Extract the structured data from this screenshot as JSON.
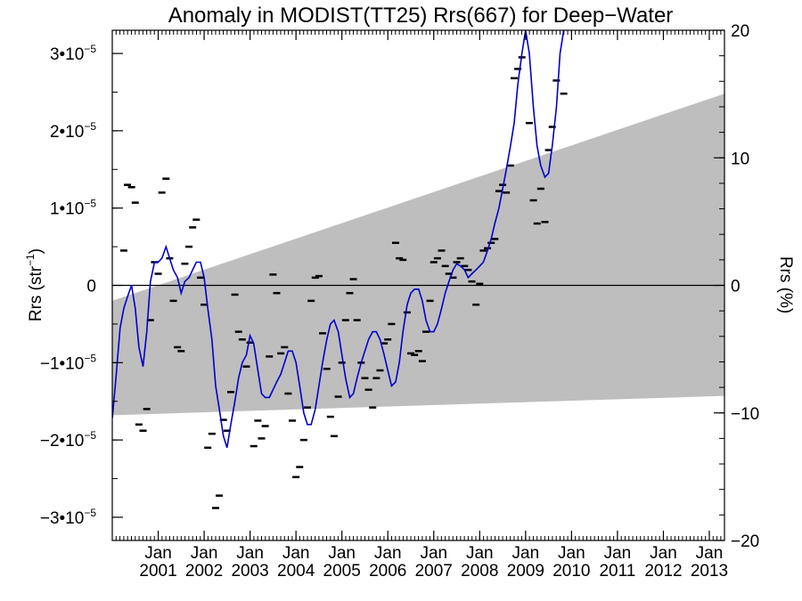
{
  "chart_data": {
    "type": "line",
    "title": "Anomaly in MODIST(TT25) Rrs(667) for Deep−Water",
    "ylabel_left": "Rrs (str",
    "ylabel_left_sup": "−1",
    "ylabel_left_close": ")",
    "ylabel_right": "Rrs (%)",
    "xlim": [
      2000.0,
      2013.33
    ],
    "ylim": [
      -3.3e-05,
      3.3e-05
    ],
    "ylim_right": [
      -20,
      20
    ],
    "x_month_label": "Jan",
    "x_ticks": [
      {
        "x": 2001.0,
        "year": "2001"
      },
      {
        "x": 2002.0,
        "year": "2002"
      },
      {
        "x": 2003.0,
        "year": "2003"
      },
      {
        "x": 2004.0,
        "year": "2004"
      },
      {
        "x": 2005.0,
        "year": "2005"
      },
      {
        "x": 2006.0,
        "year": "2006"
      },
      {
        "x": 2007.0,
        "year": "2007"
      },
      {
        "x": 2008.0,
        "year": "2008"
      },
      {
        "x": 2009.0,
        "year": "2009"
      },
      {
        "x": 2010.0,
        "year": "2010"
      },
      {
        "x": 2011.0,
        "year": "2011"
      },
      {
        "x": 2012.0,
        "year": "2012"
      },
      {
        "x": 2013.0,
        "year": "2013"
      }
    ],
    "y_ticks_left": [
      {
        "v": 3e-05,
        "mant": "3•10",
        "exp": "−5"
      },
      {
        "v": 2e-05,
        "mant": "2•10",
        "exp": "−5"
      },
      {
        "v": 1e-05,
        "mant": "1•10",
        "exp": "−5"
      },
      {
        "v": 0,
        "mant": "0",
        "exp": ""
      },
      {
        "v": -1e-05,
        "mant": "−1•10",
        "exp": "−5"
      },
      {
        "v": -2e-05,
        "mant": "−2•10",
        "exp": "−5"
      },
      {
        "v": -3e-05,
        "mant": "−3•10",
        "exp": "−5"
      }
    ],
    "y_ticks_right": [
      {
        "v": 20,
        "label": "20"
      },
      {
        "v": 10,
        "label": "10"
      },
      {
        "v": 0,
        "label": "0"
      },
      {
        "v": -10,
        "label": "−10"
      },
      {
        "v": -20,
        "label": "−20"
      }
    ],
    "zero_line": true,
    "band": {
      "color": "#bebebe",
      "x": [
        2000.0,
        2013.33
      ],
      "upper": [
        -2e-06,
        2.48e-05
      ],
      "lower": [
        -1.68e-05,
        -1.43e-05
      ]
    },
    "series": [
      {
        "kind": "smoothed-line",
        "color": "#0000d0",
        "points": [
          [
            2000.0,
            -1.72e-05
          ],
          [
            2000.08,
            -1.2e-05
          ],
          [
            2000.17,
            -5.5e-06
          ],
          [
            2000.25,
            -3e-06
          ],
          [
            2000.33,
            -1.5e-06
          ],
          [
            2000.42,
            0.0
          ],
          [
            2000.5,
            -3e-06
          ],
          [
            2000.58,
            -8e-06
          ],
          [
            2000.67,
            -1.05e-05
          ],
          [
            2000.75,
            -6e-06
          ],
          [
            2000.83,
            5e-07
          ],
          [
            2000.92,
            3e-06
          ],
          [
            2001.0,
            3e-06
          ],
          [
            2001.08,
            3.5e-06
          ],
          [
            2001.17,
            5e-06
          ],
          [
            2001.25,
            3.5e-06
          ],
          [
            2001.33,
            2e-06
          ],
          [
            2001.42,
            1e-06
          ],
          [
            2001.5,
            -1e-06
          ],
          [
            2001.58,
            5e-07
          ],
          [
            2001.67,
            1e-06
          ],
          [
            2001.75,
            2e-06
          ],
          [
            2001.83,
            3e-06
          ],
          [
            2001.92,
            3e-06
          ],
          [
            2002.0,
            1e-06
          ],
          [
            2002.08,
            -3e-06
          ],
          [
            2002.17,
            -7e-06
          ],
          [
            2002.25,
            -1.3e-05
          ],
          [
            2002.33,
            -1.6e-05
          ],
          [
            2002.42,
            -1.95e-05
          ],
          [
            2002.5,
            -2.1e-05
          ],
          [
            2002.58,
            -1.8e-05
          ],
          [
            2002.67,
            -1.5e-05
          ],
          [
            2002.75,
            -1.2e-05
          ],
          [
            2002.83,
            -1e-05
          ],
          [
            2002.92,
            -9e-06
          ],
          [
            2003.0,
            -6.5e-06
          ],
          [
            2003.08,
            -7.5e-06
          ],
          [
            2003.17,
            -1.1e-05
          ],
          [
            2003.25,
            -1.4e-05
          ],
          [
            2003.33,
            -1.45e-05
          ],
          [
            2003.42,
            -1.45e-05
          ],
          [
            2003.5,
            -1.35e-05
          ],
          [
            2003.58,
            -1.25e-05
          ],
          [
            2003.67,
            -1.15e-05
          ],
          [
            2003.75,
            -1e-05
          ],
          [
            2003.83,
            -8.5e-06
          ],
          [
            2003.92,
            -8.5e-06
          ],
          [
            2004.0,
            -1e-05
          ],
          [
            2004.08,
            -1.3e-05
          ],
          [
            2004.17,
            -1.65e-05
          ],
          [
            2004.25,
            -1.8e-05
          ],
          [
            2004.33,
            -1.8e-05
          ],
          [
            2004.42,
            -1.6e-05
          ],
          [
            2004.5,
            -1.3e-05
          ],
          [
            2004.58,
            -1e-05
          ],
          [
            2004.67,
            -7e-06
          ],
          [
            2004.75,
            -5e-06
          ],
          [
            2004.83,
            -4.5e-06
          ],
          [
            2004.92,
            -6e-06
          ],
          [
            2005.0,
            -9e-06
          ],
          [
            2005.08,
            -1.2e-05
          ],
          [
            2005.17,
            -1.45e-05
          ],
          [
            2005.25,
            -1.4e-05
          ],
          [
            2005.33,
            -1.2e-05
          ],
          [
            2005.42,
            -1e-05
          ],
          [
            2005.5,
            -8.5e-06
          ],
          [
            2005.58,
            -7e-06
          ],
          [
            2005.67,
            -6e-06
          ],
          [
            2005.75,
            -6e-06
          ],
          [
            2005.83,
            -7e-06
          ],
          [
            2005.92,
            -9e-06
          ],
          [
            2006.0,
            -1.1e-05
          ],
          [
            2006.08,
            -1.3e-05
          ],
          [
            2006.17,
            -1.25e-05
          ],
          [
            2006.25,
            -1e-05
          ],
          [
            2006.33,
            -6e-06
          ],
          [
            2006.42,
            -2.5e-06
          ],
          [
            2006.5,
            -1e-06
          ],
          [
            2006.58,
            -5e-07
          ],
          [
            2006.67,
            -5e-07
          ],
          [
            2006.75,
            -2e-06
          ],
          [
            2006.83,
            -4.5e-06
          ],
          [
            2006.92,
            -6e-06
          ],
          [
            2007.0,
            -6e-06
          ],
          [
            2007.08,
            -5e-06
          ],
          [
            2007.17,
            -3e-06
          ],
          [
            2007.25,
            -1e-06
          ],
          [
            2007.33,
            5e-07
          ],
          [
            2007.42,
            2e-06
          ],
          [
            2007.5,
            2.8e-06
          ],
          [
            2007.58,
            2.5e-06
          ],
          [
            2007.67,
            2e-06
          ],
          [
            2007.75,
            1e-06
          ],
          [
            2007.83,
            1.5e-06
          ],
          [
            2007.92,
            2e-06
          ],
          [
            2008.0,
            2.5e-06
          ],
          [
            2008.08,
            3e-06
          ],
          [
            2008.17,
            4.5e-06
          ],
          [
            2008.25,
            6e-06
          ],
          [
            2008.33,
            8e-06
          ],
          [
            2008.42,
            1e-05
          ],
          [
            2008.5,
            1.25e-05
          ],
          [
            2008.58,
            1.5e-05
          ],
          [
            2008.67,
            1.8e-05
          ],
          [
            2008.75,
            2.1e-05
          ],
          [
            2008.83,
            2.6e-05
          ],
          [
            2008.92,
            3e-05
          ],
          [
            2009.0,
            3.3e-05
          ],
          [
            2009.08,
            3e-05
          ],
          [
            2009.17,
            2.3e-05
          ],
          [
            2009.25,
            1.8e-05
          ],
          [
            2009.33,
            1.55e-05
          ],
          [
            2009.42,
            1.4e-05
          ],
          [
            2009.5,
            1.45e-05
          ],
          [
            2009.58,
            1.8e-05
          ],
          [
            2009.67,
            2.3e-05
          ],
          [
            2009.75,
            3e-05
          ],
          [
            2009.83,
            3.3e-05
          ]
        ]
      }
    ],
    "markers": [
      [
        2000.25,
        4.5e-06
      ],
      [
        2000.33,
        1.3e-05
      ],
      [
        2000.42,
        1.27e-05
      ],
      [
        2000.5,
        1.07e-05
      ],
      [
        2000.58,
        -1.8e-05
      ],
      [
        2000.67,
        -1.88e-05
      ],
      [
        2000.75,
        -1.6e-05
      ],
      [
        2000.83,
        -4.5e-06
      ],
      [
        2000.92,
        3e-06
      ],
      [
        2001.0,
        1.5e-06
      ],
      [
        2001.08,
        1.2e-05
      ],
      [
        2001.17,
        1.38e-05
      ],
      [
        2001.25,
        3.5e-06
      ],
      [
        2001.33,
        -2e-06
      ],
      [
        2001.42,
        -8e-06
      ],
      [
        2001.5,
        -8.5e-06
      ],
      [
        2001.58,
        2.8e-06
      ],
      [
        2001.67,
        5e-06
      ],
      [
        2001.75,
        7.5e-06
      ],
      [
        2001.83,
        8.5e-06
      ],
      [
        2001.92,
        1e-06
      ],
      [
        2002.0,
        -2.5e-06
      ],
      [
        2002.08,
        -2.1e-05
      ],
      [
        2002.17,
        -1.92e-05
      ],
      [
        2002.25,
        -2.88e-05
      ],
      [
        2002.33,
        -2.72e-05
      ],
      [
        2002.42,
        -1.74e-05
      ],
      [
        2002.5,
        -1.88e-05
      ],
      [
        2002.58,
        -1.38e-05
      ],
      [
        2002.67,
        -1.2e-06
      ],
      [
        2002.75,
        -6e-06
      ],
      [
        2002.83,
        -7e-06
      ],
      [
        2002.92,
        -1.05e-05
      ],
      [
        2003.0,
        -7.4e-06
      ],
      [
        2003.08,
        -2.08e-05
      ],
      [
        2003.17,
        -1.75e-05
      ],
      [
        2003.25,
        -1.98e-05
      ],
      [
        2003.33,
        -1.82e-05
      ],
      [
        2003.42,
        -9.2e-06
      ],
      [
        2003.5,
        1.4e-06
      ],
      [
        2003.58,
        -1e-06
      ],
      [
        2003.67,
        -8.8e-06
      ],
      [
        2003.75,
        -8e-06
      ],
      [
        2003.83,
        -1.4e-05
      ],
      [
        2003.92,
        -1.75e-05
      ],
      [
        2004.0,
        -2.48e-05
      ],
      [
        2004.08,
        -2.35e-05
      ],
      [
        2004.17,
        -2e-05
      ],
      [
        2004.25,
        -1.58e-05
      ],
      [
        2004.33,
        -2e-06
      ],
      [
        2004.42,
        1e-06
      ],
      [
        2004.5,
        1.2e-06
      ],
      [
        2004.58,
        -6.2e-06
      ],
      [
        2004.67,
        -1.08e-05
      ],
      [
        2004.75,
        -1.7e-05
      ],
      [
        2004.83,
        -1.95e-05
      ],
      [
        2004.92,
        -1.44e-05
      ],
      [
        2005.0,
        -1e-05
      ],
      [
        2005.08,
        -4.5e-06
      ],
      [
        2005.17,
        -1e-06
      ],
      [
        2005.25,
        8e-07
      ],
      [
        2005.33,
        -4.5e-06
      ],
      [
        2005.42,
        -1e-05
      ],
      [
        2005.5,
        -1.2e-05
      ],
      [
        2005.58,
        -1.35e-05
      ],
      [
        2005.67,
        -1.58e-05
      ],
      [
        2005.75,
        -1.2e-05
      ],
      [
        2005.83,
        -1.1e-05
      ],
      [
        2005.92,
        -7.5e-06
      ],
      [
        2006.0,
        -7e-06
      ],
      [
        2006.08,
        -5e-06
      ],
      [
        2006.17,
        5.5e-06
      ],
      [
        2006.25,
        3.5e-06
      ],
      [
        2006.33,
        3.3e-06
      ],
      [
        2006.42,
        -3.5e-06
      ],
      [
        2006.5,
        -8.8e-06
      ],
      [
        2006.58,
        -9e-06
      ],
      [
        2006.67,
        -8.5e-06
      ],
      [
        2006.75,
        -9.8e-06
      ],
      [
        2006.83,
        -6e-06
      ],
      [
        2006.92,
        -2e-06
      ],
      [
        2007.0,
        3e-06
      ],
      [
        2007.08,
        3.5e-06
      ],
      [
        2007.17,
        4.5e-06
      ],
      [
        2007.25,
        2.5e-06
      ],
      [
        2007.33,
        1.5e-06
      ],
      [
        2007.42,
        1e-06
      ],
      [
        2007.5,
        3e-06
      ],
      [
        2007.58,
        3.5e-06
      ],
      [
        2007.67,
        2.5e-06
      ],
      [
        2007.75,
        2e-06
      ],
      [
        2007.83,
        5e-07
      ],
      [
        2007.92,
        -2.5e-06
      ],
      [
        2008.0,
        2e-07
      ],
      [
        2008.08,
        4.5e-06
      ],
      [
        2008.17,
        4.8e-06
      ],
      [
        2008.25,
        5.5e-06
      ],
      [
        2008.33,
        6e-06
      ],
      [
        2008.42,
        1.22e-05
      ],
      [
        2008.5,
        1.3e-05
      ],
      [
        2008.58,
        1.2e-05
      ],
      [
        2008.67,
        1.55e-05
      ],
      [
        2008.75,
        2.68e-05
      ],
      [
        2008.83,
        2.8e-05
      ],
      [
        2008.92,
        2.95e-05
      ],
      [
        2009.08,
        2.1e-05
      ],
      [
        2009.17,
        1.1e-05
      ],
      [
        2009.25,
        8e-06
      ],
      [
        2009.33,
        1.25e-05
      ],
      [
        2009.42,
        8.2e-06
      ],
      [
        2009.5,
        1.75e-05
      ],
      [
        2009.58,
        2.05e-05
      ],
      [
        2009.67,
        2.65e-05
      ],
      [
        2009.83,
        2.48e-05
      ]
    ]
  }
}
